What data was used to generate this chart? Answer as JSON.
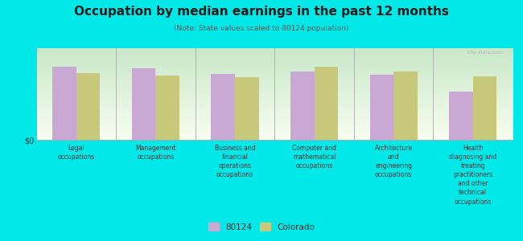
{
  "title": "Occupation by median earnings in the past 12 months",
  "subtitle": "(Note: State values scaled to 80124 population)",
  "background_outer": "#00e8e8",
  "background_chart_top": "#c8e8c8",
  "background_chart_bottom": "#f8fef0",
  "bar_color_80124": "#c9a8d4",
  "bar_color_colorado": "#c8c87a",
  "watermark": "City-Data.com",
  "categories": [
    "Legal\noccupations",
    "Management\noccupations",
    "Business and\nfinancial\noperations\noccupations",
    "Computer and\nmathematical\noccupations",
    "Architecture\nand\nengineering\noccupations",
    "Health\ndiagnosing and\ntreating\npractitioners\nand other\ntechnical\noccupations"
  ],
  "values_80124": [
    0.8,
    0.78,
    0.72,
    0.75,
    0.71,
    0.53
  ],
  "values_colorado": [
    0.73,
    0.7,
    0.68,
    0.8,
    0.75,
    0.69
  ],
  "ylabel": "$0",
  "legend_80124": "80124",
  "legend_colorado": "Colorado",
  "ylim": [
    0,
    1.0
  ],
  "title_color": "#1a1a1a",
  "subtitle_color": "#555555",
  "label_color": "#333333"
}
